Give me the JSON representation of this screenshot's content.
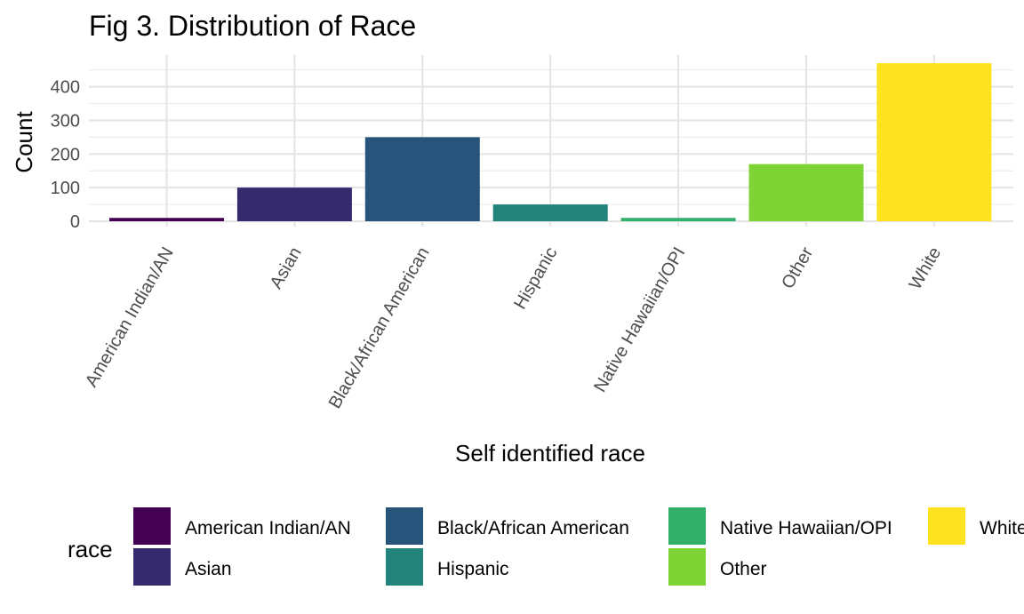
{
  "chart_data": {
    "type": "bar",
    "title": "Fig 3. Distribution of Race",
    "xlabel": "Self identified race",
    "ylabel": "Count",
    "categories": [
      "American Indian/AN",
      "Asian",
      "Black/African American",
      "Hispanic",
      "Native Hawaiian/OPI",
      "Other",
      "White"
    ],
    "values": [
      10,
      100,
      250,
      50,
      10,
      170,
      470
    ],
    "yticks": [
      0,
      100,
      200,
      300,
      400
    ],
    "ylim": [
      0,
      470
    ],
    "grid": true,
    "legend": {
      "title": "race",
      "placement": "bottom",
      "entries": [
        "American Indian/AN",
        "Asian",
        "Black/African American",
        "Hispanic",
        "Native Hawaiian/OPI",
        "Other",
        "White"
      ]
    },
    "colors": [
      "#440154",
      "#352A6E",
      "#27547A",
      "#21837A",
      "#30B06A",
      "#7ED434",
      "#FDE31F"
    ]
  }
}
